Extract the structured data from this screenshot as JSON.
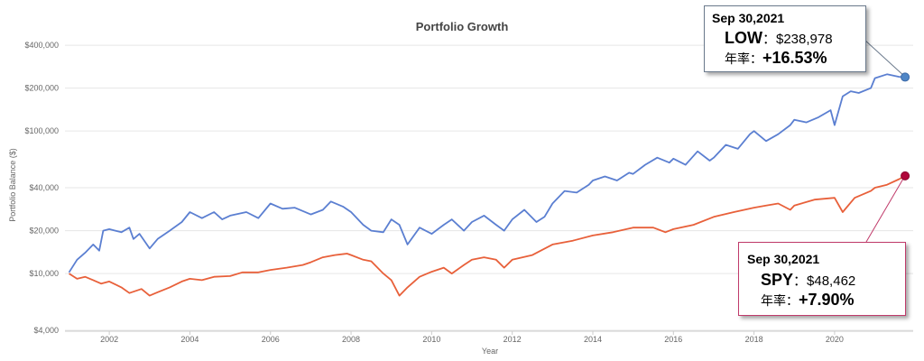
{
  "chart_data": {
    "type": "line",
    "title": "Portfolio Growth",
    "xlabel": "Year",
    "ylabel": "Portfolio Balance ($)",
    "y_scale": "log",
    "ylim": [
      4000,
      450000
    ],
    "xlim": [
      2000.9,
      2021.95
    ],
    "y_ticks": [
      4000,
      10000,
      20000,
      40000,
      100000,
      200000,
      400000
    ],
    "y_tick_labels": [
      "$4,000",
      "$10,000",
      "$20,000",
      "$40,000",
      "$100,000",
      "$200,000",
      "$400,000"
    ],
    "x_ticks": [
      2002,
      2004,
      2006,
      2008,
      2010,
      2012,
      2014,
      2016,
      2018,
      2020
    ],
    "grid": "horizontal",
    "series": [
      {
        "name": "LOW",
        "color": "#5b7fd1",
        "x": [
          2001.0,
          2001.2,
          2001.4,
          2001.6,
          2001.75,
          2001.85,
          2002.0,
          2002.3,
          2002.5,
          2002.6,
          2002.75,
          2003.0,
          2003.2,
          2003.5,
          2003.8,
          2004.0,
          2004.3,
          2004.6,
          2004.8,
          2005.0,
          2005.4,
          2005.7,
          2006.0,
          2006.3,
          2006.6,
          2007.0,
          2007.3,
          2007.5,
          2007.8,
          2008.0,
          2008.3,
          2008.5,
          2008.8,
          2009.0,
          2009.2,
          2009.4,
          2009.7,
          2010.0,
          2010.3,
          2010.5,
          2010.8,
          2011.0,
          2011.3,
          2011.6,
          2011.8,
          2012.0,
          2012.3,
          2012.6,
          2012.8,
          2013.0,
          2013.3,
          2013.6,
          2013.9,
          2014.0,
          2014.3,
          2014.6,
          2014.9,
          2015.0,
          2015.3,
          2015.6,
          2015.9,
          2016.0,
          2016.3,
          2016.6,
          2016.9,
          2017.0,
          2017.3,
          2017.6,
          2017.9,
          2018.0,
          2018.3,
          2018.6,
          2018.9,
          2019.0,
          2019.3,
          2019.6,
          2019.9,
          2020.0,
          2020.2,
          2020.4,
          2020.6,
          2020.9,
          2021.0,
          2021.3,
          2021.6,
          2021.75
        ],
        "values": [
          10200,
          12500,
          14000,
          16000,
          14500,
          20000,
          20500,
          19500,
          21000,
          17500,
          19000,
          15000,
          17500,
          20000,
          23000,
          27000,
          24500,
          27000,
          24000,
          25500,
          27000,
          24500,
          31000,
          28500,
          29000,
          26000,
          28000,
          32000,
          29500,
          27000,
          22000,
          20000,
          19500,
          24000,
          22000,
          16000,
          21000,
          19000,
          22000,
          24000,
          20000,
          23000,
          25500,
          22000,
          20000,
          24000,
          28000,
          23000,
          25000,
          31000,
          38000,
          37000,
          42000,
          45000,
          48000,
          45000,
          51000,
          50000,
          58000,
          65000,
          60000,
          64000,
          58000,
          72000,
          62000,
          65000,
          80000,
          75000,
          95000,
          100000,
          85000,
          95000,
          110000,
          120000,
          115000,
          125000,
          140000,
          110000,
          175000,
          190000,
          185000,
          200000,
          235000,
          250000,
          240000,
          238978
        ]
      },
      {
        "name": "SPY",
        "color": "#e8603a",
        "x": [
          2001.0,
          2001.2,
          2001.4,
          2001.6,
          2001.8,
          2002.0,
          2002.3,
          2002.5,
          2002.8,
          2003.0,
          2003.2,
          2003.5,
          2003.8,
          2004.0,
          2004.3,
          2004.6,
          2005.0,
          2005.3,
          2005.7,
          2006.0,
          2006.4,
          2006.8,
          2007.0,
          2007.3,
          2007.6,
          2007.9,
          2008.0,
          2008.3,
          2008.5,
          2008.8,
          2009.0,
          2009.2,
          2009.4,
          2009.7,
          2010.0,
          2010.3,
          2010.5,
          2010.8,
          2011.0,
          2011.3,
          2011.6,
          2011.8,
          2012.0,
          2012.5,
          2013.0,
          2013.5,
          2014.0,
          2014.5,
          2015.0,
          2015.5,
          2015.8,
          2016.0,
          2016.5,
          2017.0,
          2017.5,
          2018.0,
          2018.3,
          2018.6,
          2018.9,
          2019.0,
          2019.5,
          2020.0,
          2020.2,
          2020.5,
          2020.9,
          2021.0,
          2021.3,
          2021.6,
          2021.75
        ],
        "values": [
          10000,
          9200,
          9500,
          9000,
          8500,
          8800,
          8000,
          7300,
          7800,
          7000,
          7400,
          8000,
          8800,
          9200,
          9000,
          9500,
          9600,
          10200,
          10200,
          10600,
          11000,
          11500,
          12000,
          13000,
          13500,
          13800,
          13500,
          12500,
          12200,
          10000,
          9000,
          7000,
          8000,
          9500,
          10300,
          11000,
          10000,
          11500,
          12500,
          13000,
          12500,
          11000,
          12500,
          13500,
          16000,
          17000,
          18500,
          19500,
          21000,
          21000,
          19500,
          20500,
          22000,
          25000,
          27000,
          29000,
          30000,
          31000,
          28000,
          30000,
          33000,
          34000,
          27000,
          34000,
          38000,
          40000,
          42000,
          46000,
          48462
        ]
      }
    ]
  },
  "callouts": {
    "low": {
      "date": "Sep 30,2021",
      "ticker": "LOW",
      "value_text": "：$238,978",
      "cagr_label": "年率：",
      "cagr_value": "+16.53%"
    },
    "spy": {
      "date": "Sep 30,2021",
      "ticker": "SPY",
      "value_text": "：$48,462",
      "cagr_label": "年率：",
      "cagr_value": "+7.90%"
    }
  }
}
